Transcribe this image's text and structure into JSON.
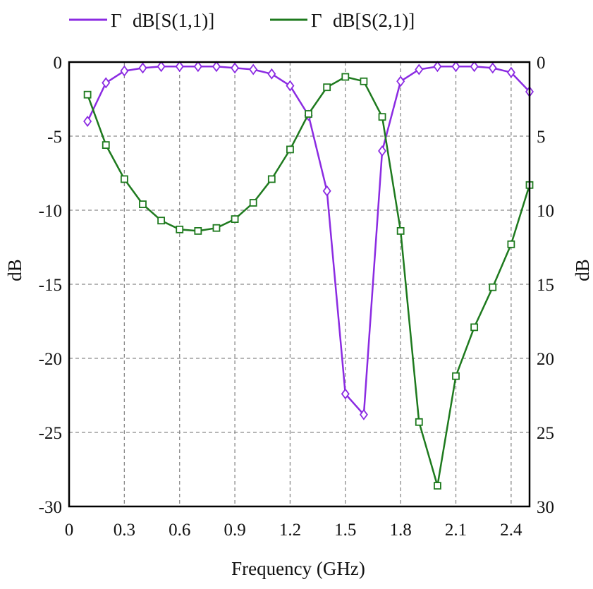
{
  "chart_data": {
    "type": "line",
    "xlabel": "Frequency (GHz)",
    "ylabel_left": "dB",
    "ylabel_right": "dB",
    "xlim": [
      0,
      2.5
    ],
    "ylim": [
      -30,
      0
    ],
    "grid": true,
    "legend_position": "top",
    "x_ticks": [
      "0",
      "0.3",
      "0.6",
      "0.9",
      "1.2",
      "1.5",
      "1.8",
      "2.1",
      "2.4"
    ],
    "x_tick_values": [
      0,
      0.3,
      0.6,
      0.9,
      1.2,
      1.5,
      1.8,
      2.1,
      2.4
    ],
    "y_ticks_left": [
      "0",
      "-5",
      "-10",
      "-15",
      "-20",
      "-25",
      "-30"
    ],
    "y_ticks_right": [
      "0",
      "5",
      "10",
      "15",
      "20",
      "25",
      "30"
    ],
    "y_tick_values": [
      0,
      -5,
      -10,
      -15,
      -20,
      -25,
      -30
    ],
    "series": [
      {
        "name": "dB[S(1,1)]",
        "legend_symbol": "Γ",
        "color": "#8B2BE2",
        "marker": "diamond",
        "x": [
          0.1,
          0.2,
          0.3,
          0.4,
          0.5,
          0.6,
          0.7,
          0.8,
          0.9,
          1.0,
          1.1,
          1.2,
          1.3,
          1.4,
          1.5,
          1.6,
          1.7,
          1.8,
          1.9,
          2.0,
          2.1,
          2.2,
          2.3,
          2.4,
          2.5
        ],
        "y": [
          -4.0,
          -1.4,
          -0.6,
          -0.4,
          -0.3,
          -0.3,
          -0.3,
          -0.3,
          -0.4,
          -0.5,
          -0.8,
          -1.6,
          -3.6,
          -8.7,
          -22.4,
          -23.8,
          -6.0,
          -1.3,
          -0.5,
          -0.3,
          -0.3,
          -0.3,
          -0.4,
          -0.7,
          -2.0
        ]
      },
      {
        "name": "dB[S(2,1)]",
        "legend_symbol": "Γ",
        "color": "#1E7A1E",
        "marker": "square",
        "x": [
          0.1,
          0.2,
          0.3,
          0.4,
          0.5,
          0.6,
          0.7,
          0.8,
          0.9,
          1.0,
          1.1,
          1.2,
          1.3,
          1.4,
          1.5,
          1.6,
          1.7,
          1.8,
          1.9,
          2.0,
          2.1,
          2.2,
          2.3,
          2.4,
          2.5
        ],
        "y": [
          -2.2,
          -5.6,
          -7.9,
          -9.6,
          -10.7,
          -11.3,
          -11.4,
          -11.2,
          -10.6,
          -9.5,
          -7.9,
          -5.9,
          -3.5,
          -1.7,
          -1.0,
          -1.3,
          -3.7,
          -11.4,
          -24.3,
          -28.6,
          -21.2,
          -17.9,
          -15.2,
          -12.3,
          -8.3
        ]
      }
    ]
  }
}
